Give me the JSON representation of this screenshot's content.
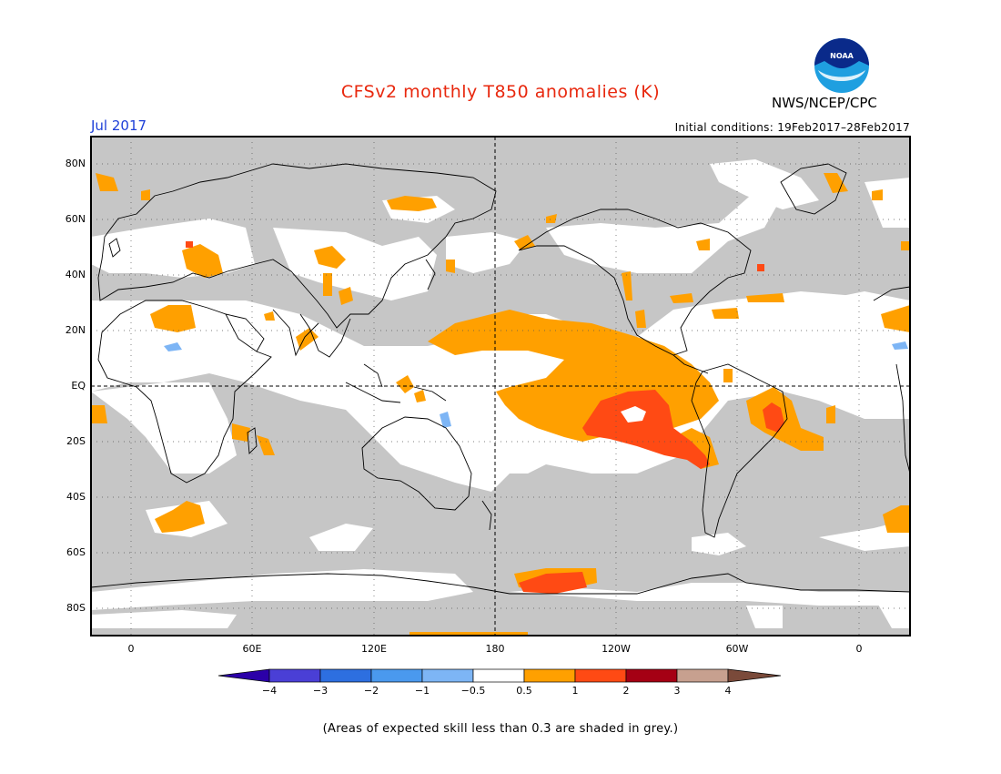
{
  "header": {
    "title": "CFSv2 monthly T850 anomalies (K)",
    "month": "Jul 2017",
    "initial_conditions": "Initial conditions: 19Feb2017–28Feb2017",
    "agency": "NWS/NCEP/CPC",
    "logo_text": "NOAA"
  },
  "map": {
    "lat_labels": [
      "80N",
      "60N",
      "40N",
      "20N",
      "EQ",
      "20S",
      "40S",
      "60S",
      "80S"
    ],
    "lon_labels": [
      "0",
      "60E",
      "120E",
      "180",
      "120W",
      "60W",
      "0"
    ],
    "colors": {
      "grey_low_skill": "#c6c6c6",
      "ocean_white": "#ffffff",
      "anom_0_5_1": "#ffa000",
      "anom_1_2": "#ff4a14",
      "anom_2_3": "#a50014",
      "anom_neg_0_5_1": "#7db5f5",
      "coast": "#000000"
    }
  },
  "colorbar": {
    "labels": [
      "−4",
      "−3",
      "−2",
      "−1",
      "−0.5",
      "0.5",
      "1",
      "2",
      "3",
      "4"
    ],
    "colors": [
      "#2b00a8",
      "#4a3fd6",
      "#2d6fe0",
      "#4a99ee",
      "#7db5f5",
      "#ffffff",
      "#ffa000",
      "#ff4a14",
      "#a50014",
      "#c7a08f",
      "#7a4a3a"
    ]
  },
  "footer": "(Areas of expected skill less than 0.3 are shaded in grey.)"
}
